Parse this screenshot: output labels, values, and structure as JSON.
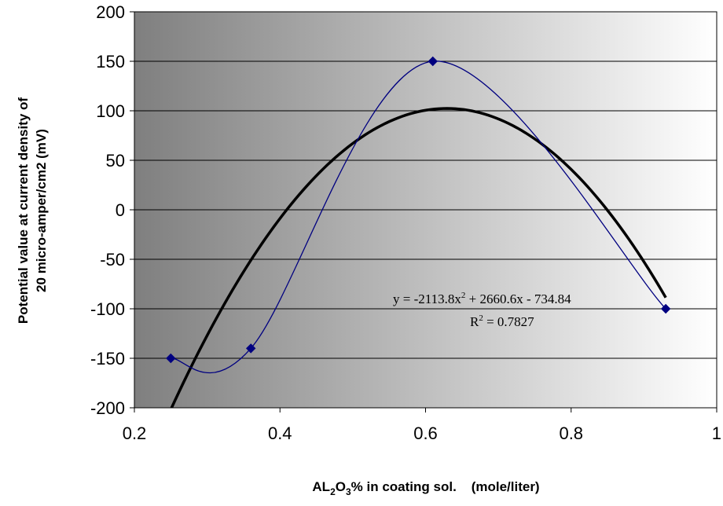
{
  "chart_data": {
    "type": "scatter",
    "xlabel_parts": [
      "AL",
      "2",
      "O",
      "3",
      "% in coating sol.    (mole/liter)"
    ],
    "ylabel_lines": [
      "Potential value at current density of",
      "20 micro-amper/cm2 (mV)"
    ],
    "xlim": [
      0.2,
      1
    ],
    "ylim": [
      -200,
      200
    ],
    "x_ticks": [
      0.2,
      0.4,
      0.6,
      0.8,
      1
    ],
    "x_tick_labels": [
      "0.2",
      "0.4",
      "0.6",
      "0.8",
      "1"
    ],
    "y_ticks": [
      -200,
      -150,
      -100,
      -50,
      0,
      50,
      100,
      150,
      200
    ],
    "y_tick_labels": [
      "-200",
      "-150",
      "-100",
      "-50",
      "0",
      "50",
      "100",
      "150",
      "200"
    ],
    "grid": "horizontal",
    "series": [
      {
        "x": [
          0.25,
          0.36,
          0.61,
          0.93
        ],
        "y": [
          -150,
          -140,
          150,
          -100
        ],
        "color": "#000080",
        "marker": "diamond",
        "line": "smooth"
      }
    ],
    "trendline": {
      "type": "polynomial",
      "coefficients": [
        -2113.8,
        2660.6,
        -734.84
      ],
      "x_range": [
        0.25,
        0.93
      ],
      "color": "#000000",
      "equation_parts": [
        "y = -2113.8x",
        "2",
        " + 2660.6x - 734.84"
      ],
      "r2_parts": [
        "R",
        "2",
        " = 0.7827"
      ]
    }
  }
}
